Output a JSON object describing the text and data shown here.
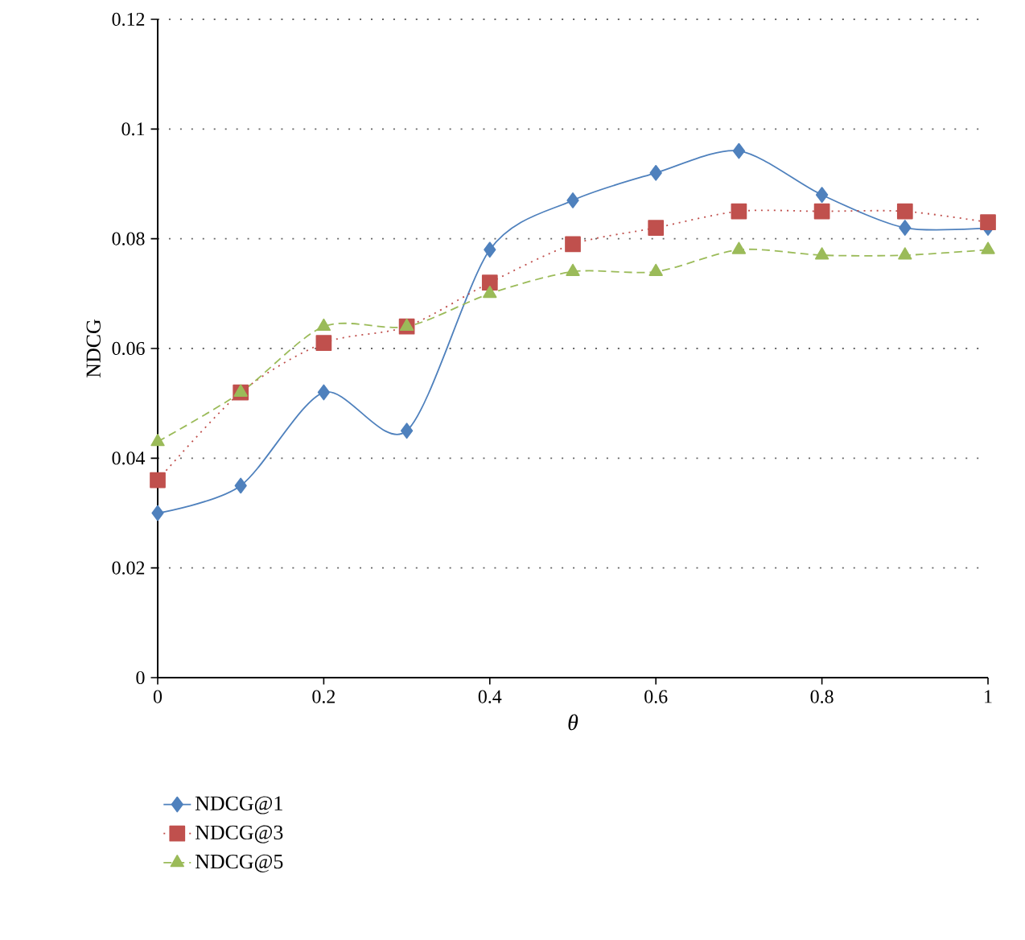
{
  "chart_data": {
    "type": "line",
    "xlabel": "θ",
    "ylabel": "NDCG",
    "x": [
      0,
      0.1,
      0.2,
      0.3,
      0.4,
      0.5,
      0.6,
      0.7,
      0.8,
      0.9,
      1
    ],
    "xlim": [
      0,
      1
    ],
    "xticks": [
      0,
      0.2,
      0.4,
      0.6,
      0.8,
      1
    ],
    "ylim": [
      0,
      0.12
    ],
    "yticks": [
      0,
      0.02,
      0.04,
      0.06,
      0.08,
      0.1,
      0.12
    ],
    "grid": "y",
    "legend": "bottom left",
    "series": [
      {
        "name": "NDCG@1",
        "color": "#4f81bd",
        "marker": "diamond",
        "line_style": "solid",
        "values": [
          0.03,
          0.035,
          0.052,
          0.045,
          0.078,
          0.087,
          0.092,
          0.096,
          0.088,
          0.082,
          0.082
        ]
      },
      {
        "name": "NDCG@3",
        "color": "#c0504d",
        "marker": "square",
        "line_style": "dotted",
        "values": [
          0.036,
          0.052,
          0.061,
          0.064,
          0.072,
          0.079,
          0.082,
          0.085,
          0.085,
          0.085,
          0.083
        ]
      },
      {
        "name": "NDCG@5",
        "color": "#9bbb59",
        "marker": "triangle",
        "line_style": "dashed",
        "values": [
          0.043,
          0.052,
          0.064,
          0.064,
          0.07,
          0.074,
          0.074,
          0.078,
          0.077,
          0.077,
          0.078
        ]
      }
    ]
  }
}
